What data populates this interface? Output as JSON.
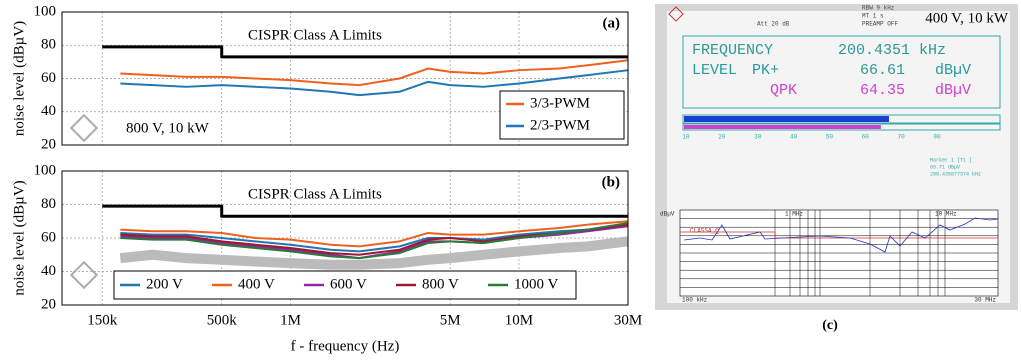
{
  "chart_data": [
    {
      "type": "line",
      "panel_label": "(a)",
      "ylabel": "noise level (dBµV)",
      "annotation": "800 V, 10 kW",
      "xlog": true,
      "xlim": [
        100000,
        30000000
      ],
      "xticks": [
        150000,
        500000,
        1000000,
        5000000,
        10000000,
        30000000
      ],
      "xtick_labels": false,
      "ylim": [
        20,
        100
      ],
      "yticks": [
        20,
        40,
        60,
        80,
        100
      ],
      "grid": true,
      "legend": "lower right",
      "limit": {
        "label": "CISPR Class A Limits",
        "color": "#000000",
        "x": [
          150000,
          500000,
          500000,
          30000000
        ],
        "values": [
          79,
          79,
          73,
          73
        ]
      },
      "x": [
        180000,
        250000,
        350000,
        500000,
        700000,
        1000000,
        1500000,
        2000000,
        3000000,
        4000000,
        5000000,
        7000000,
        10000000,
        15000000,
        20000000,
        30000000
      ],
      "series": [
        {
          "name": "3/3-PWM",
          "color": "#f0601e",
          "values": [
            63,
            62,
            61,
            61,
            60,
            59,
            57,
            56,
            60,
            66,
            64,
            63,
            65,
            66,
            68,
            71
          ]
        },
        {
          "name": "2/3-PWM",
          "color": "#1f77b4",
          "values": [
            57,
            56,
            55,
            56,
            55,
            54,
            52,
            50,
            52,
            58,
            56,
            55,
            57,
            60,
            62,
            65
          ]
        }
      ]
    },
    {
      "type": "line",
      "panel_label": "(b)",
      "ylabel": "noise level (dBµV)",
      "xlabel": "f - frequency (Hz)",
      "xlog": true,
      "xlim": [
        100000,
        30000000
      ],
      "xticks": [
        {
          "value": 150000,
          "label": "150k"
        },
        {
          "value": 500000,
          "label": "500k"
        },
        {
          "value": 1000000,
          "label": "1M"
        },
        {
          "value": 5000000,
          "label": "5M"
        },
        {
          "value": 10000000,
          "label": "10M"
        },
        {
          "value": 30000000,
          "label": "30M"
        }
      ],
      "xtick_labels": true,
      "ylim": [
        20,
        100
      ],
      "yticks": [
        20,
        40,
        60,
        80,
        100
      ],
      "grid": true,
      "legend": "lower center",
      "limit": {
        "label": "CISPR Class A Limits",
        "color": "#000000",
        "x": [
          150000,
          500000,
          500000,
          30000000
        ],
        "values": [
          79,
          79,
          73,
          73
        ]
      },
      "x": [
        180000,
        250000,
        350000,
        500000,
        700000,
        1000000,
        1500000,
        2000000,
        3000000,
        4000000,
        5000000,
        7000000,
        10000000,
        15000000,
        20000000,
        30000000
      ],
      "background": {
        "color": "#bbbbbb",
        "values": [
          48,
          50,
          48,
          47,
          46,
          45,
          44,
          44,
          45,
          47,
          48,
          50,
          52,
          54,
          55,
          58
        ]
      },
      "series": [
        {
          "name": "200 V",
          "color": "#1f77b4",
          "values": [
            63,
            62,
            62,
            60,
            58,
            56,
            53,
            52,
            55,
            60,
            60,
            59,
            62,
            64,
            65,
            68
          ]
        },
        {
          "name": "400 V",
          "color": "#f0601e",
          "values": [
            65,
            64,
            64,
            63,
            60,
            59,
            56,
            55,
            58,
            63,
            62,
            62,
            64,
            66,
            68,
            70
          ]
        },
        {
          "name": "600 V",
          "color": "#8e2aa0",
          "values": [
            61,
            60,
            60,
            57,
            55,
            53,
            50,
            48,
            52,
            58,
            58,
            57,
            60,
            62,
            64,
            67
          ]
        },
        {
          "name": "800 V",
          "color": "#a0182e",
          "values": [
            62,
            61,
            61,
            58,
            56,
            54,
            51,
            50,
            53,
            59,
            60,
            58,
            61,
            63,
            65,
            68
          ]
        },
        {
          "name": "1000 V",
          "color": "#2a7a3a",
          "values": [
            60,
            59,
            59,
            56,
            54,
            52,
            49,
            48,
            51,
            57,
            58,
            57,
            60,
            63,
            65,
            69
          ]
        }
      ]
    }
  ],
  "receiver_screen": {
    "panel_label": "(c)",
    "rbw": "RBW 9 kHz",
    "mt": "MT 1 s",
    "preamp": "PREAMP OFF",
    "att": "Att 20 dB",
    "title": "400 V, 10 kW",
    "freq_label": "FREQUENCY",
    "freq_value": "200.4351 kHz",
    "level_label": "LEVEL",
    "pk_label": "PK+",
    "pk_value": 66.61,
    "pk_unit": "dBµV",
    "qpk_label": "QPK",
    "qpk_value": 64.35,
    "qpk_unit": "dBµV",
    "bar_scale": [
      10,
      20,
      30,
      40,
      50,
      60,
      70,
      80
    ],
    "marker": "Marker 1 [T1 ]",
    "marker_level": "65.71 dBµV",
    "marker_freq": "200.435877374 kHz",
    "limit_line": "CLASSA_Q",
    "unit": "dBµV",
    "f1": "1 MHz",
    "f2": "10 MHz",
    "f_start": "100 kHz",
    "f_stop": "30 MHz"
  }
}
